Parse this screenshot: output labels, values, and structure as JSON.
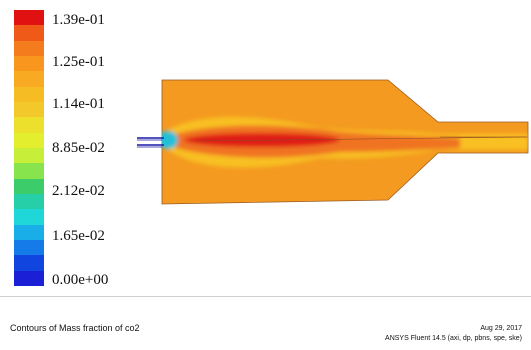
{
  "colorbar": {
    "labels": [
      "1.39e-01",
      "1.25e-01",
      "1.14e-01",
      "8.85e-02",
      "2.12e-02",
      "1.65e-02",
      "0.00e+00"
    ],
    "colors": [
      "#e21111",
      "#f05a18",
      "#f47c1c",
      "#f8961e",
      "#f7aa22",
      "#f6bc24",
      "#f2c82a",
      "#ede02c",
      "#e3ee2e",
      "#c7ef3a",
      "#88e44c",
      "#3ccc6a",
      "#26cfa8",
      "#1fd6d8",
      "#1aaee8",
      "#157be8",
      "#1145e0",
      "#1b1fd6"
    ]
  },
  "contour": {
    "background_color": "#f49a20",
    "core_color": "#e01d12",
    "ring_color": "#f07320",
    "halo_color": "#f8c020",
    "jet_color": "#22c0d8",
    "nozzle_color": "#1a1aa8"
  },
  "footer": {
    "title": "Contours of Mass fraction of co2",
    "date": "Aug 29, 2017",
    "version": "ANSYS Fluent 14.5 (axi, dp, pbns, spe, ske)"
  }
}
